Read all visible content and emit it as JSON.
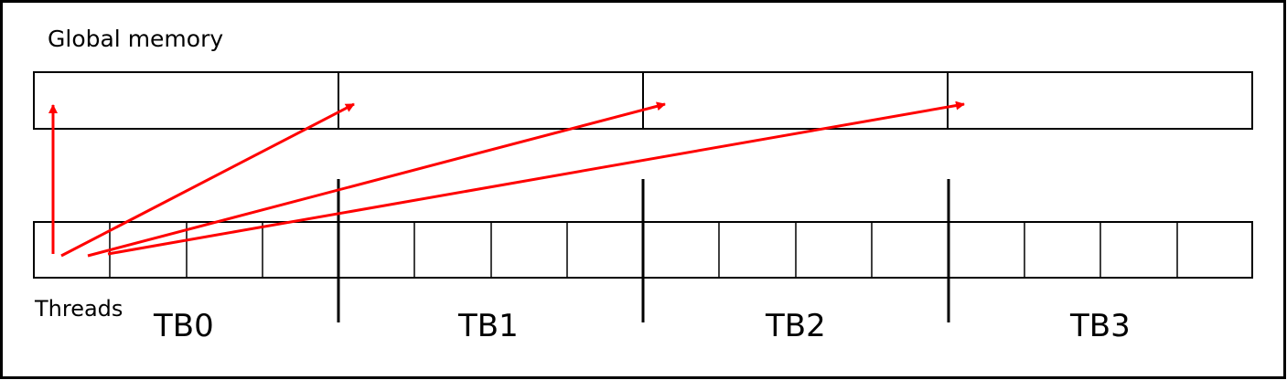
{
  "global_memory_label": "Global memory",
  "threads_label": "Threads",
  "thread_blocks": [
    "TB0",
    "TB1",
    "TB2",
    "TB3"
  ],
  "threads_per_block": 4,
  "colors": {
    "outline": "#000000",
    "arrow": "#ff0000",
    "background": "#ffffff"
  }
}
